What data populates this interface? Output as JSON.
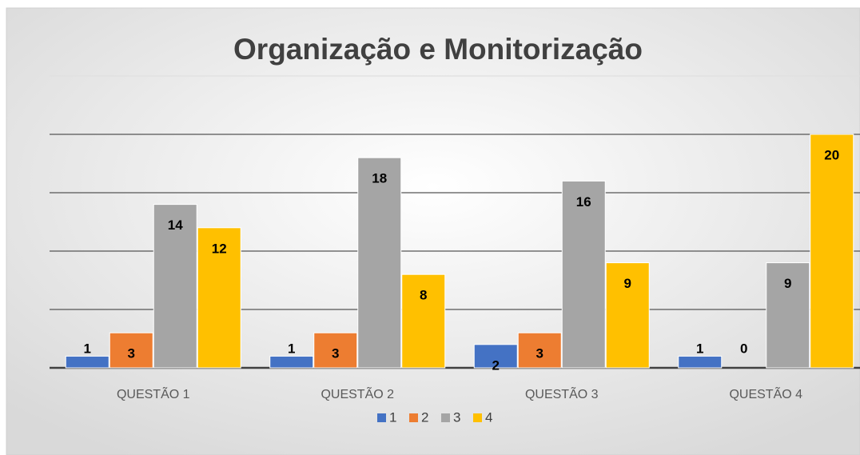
{
  "chart_data": {
    "type": "bar",
    "title": "Organização e Monitorização",
    "categories": [
      "QUESTÃO 1",
      "QUESTÃO 2",
      "QUESTÃO 3",
      "QUESTÃO 4"
    ],
    "series": [
      {
        "name": "1",
        "color": "#4472c4",
        "values": [
          1,
          1,
          2,
          1
        ]
      },
      {
        "name": "2",
        "color": "#ed7d31",
        "values": [
          3,
          3,
          3,
          0
        ]
      },
      {
        "name": "3",
        "color": "#a5a5a5",
        "values": [
          14,
          18,
          16,
          9
        ]
      },
      {
        "name": "4",
        "color": "#ffc000",
        "values": [
          12,
          8,
          9,
          20
        ]
      }
    ],
    "ylim": [
      0,
      25
    ],
    "yticks": [
      0,
      5,
      10,
      15,
      20,
      25
    ],
    "grid": true,
    "legend": "bottom"
  }
}
